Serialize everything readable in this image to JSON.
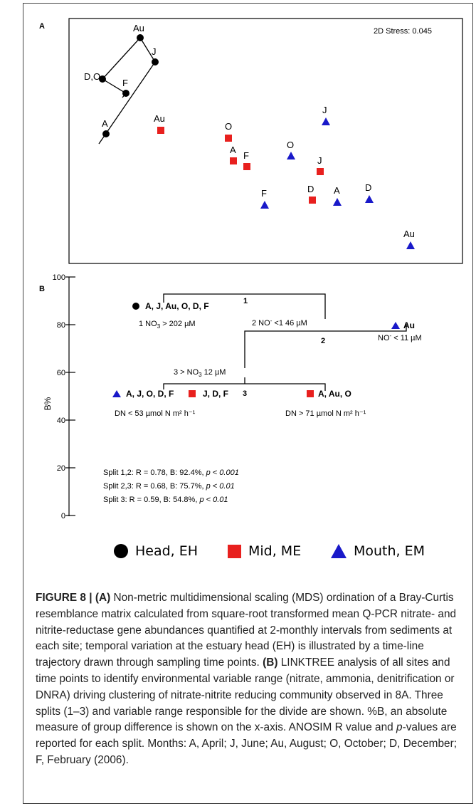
{
  "panel_a": {
    "label": "A",
    "stress": "2D Stress: 0.045",
    "head_labels": [
      "Au",
      "J",
      "D,O",
      "F",
      "A"
    ],
    "mid_points": [
      {
        "label": "Au"
      },
      {
        "label": "O"
      },
      {
        "label": "A"
      },
      {
        "label": "F"
      },
      {
        "label": "J"
      },
      {
        "label": "D"
      }
    ],
    "mouth_points": [
      {
        "label": "J"
      },
      {
        "label": "O"
      },
      {
        "label": "F"
      },
      {
        "label": "A"
      },
      {
        "label": "D"
      },
      {
        "label": "Au"
      }
    ]
  },
  "panel_b": {
    "label": "B",
    "y_axis_label": "B%",
    "y_ticks": [
      "0",
      "20",
      "40",
      "60",
      "80",
      "100"
    ],
    "node1": "1",
    "node2": "2",
    "node3": "3",
    "group_head": "A, J, Au, O, D, F",
    "rule_head_pre": "1 NO",
    "rule_head_post": " > 202 µM",
    "rule_split2_pre": "2 NO",
    "rule_split2_post": " <1 46 µM",
    "group_mouth_au": "Au",
    "rule_mouth_au_pre": "NO",
    "rule_mouth_au_post": " < 11 µM",
    "rule_split3": "3 > NO",
    "rule_split3_post": " 12 µM",
    "group_left_mouth": "A, J, O, D, F",
    "group_left_mid": "J, D, F",
    "group_right_mid": "A, Au, O",
    "rule_left": "DN < 53 µmol N m² h⁻¹",
    "rule_right": "DN > 71 µmol N m² h⁻¹",
    "stats": [
      {
        "prefix": "Split 1,2: R = 0.78, B: 92.4%, ",
        "p": "p < 0.001"
      },
      {
        "prefix": "Split  2,3: R = 0.68, B: 75.7%, ",
        "p": "p < 0.01"
      },
      {
        "prefix": "Split    3: R = 0.59, B: 54.8%, ",
        "p": "p < 0.01"
      }
    ]
  },
  "legend": {
    "head": "Head, EH",
    "mid": "Mid, ME",
    "mouth": "Mouth, EM"
  },
  "caption": {
    "figure_label": "FIGURE 8 | ",
    "a_label": "(A)",
    "a_text": " Non-metric multidimensional scaling (MDS) ordination of a Bray-Curtis resemblance matrix calculated from square-root transformed mean Q-PCR nitrate- and nitrite-reductase gene abundances quantified at 2-monthly intervals from sediments at each site; temporal variation at the estuary head (EH) is illustrated by a time-line trajectory drawn through sampling time points. ",
    "b_label": "(B)",
    "b_text": " LINKTREE analysis of all sites and time points to identify environmental variable range (nitrate, ammonia, denitrification or DNRA) driving clustering of nitrate-nitrite reducing community observed in 8A. Three splits (1–3) and variable range responsible for the divide are shown. %B, an absolute measure of group difference is shown on the x-axis. ANOSIM R value and ",
    "p_italic": "p",
    "c_text": "-values are reported for each split. Months: A, April; J, June; Au, August; O, October; D, December; F, February (2006)."
  },
  "colors": {
    "head": "#000000",
    "mid": "#e8201e",
    "mouth": "#1919c9"
  }
}
